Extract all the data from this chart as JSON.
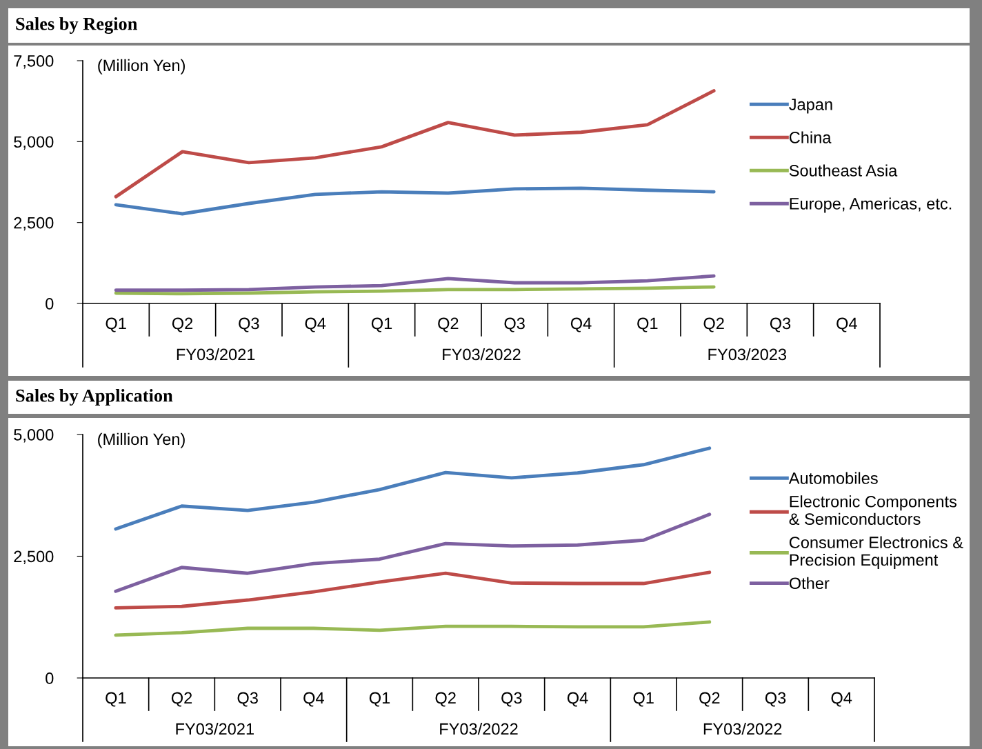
{
  "chart_data": [
    {
      "type": "line",
      "title": "Sales by Region",
      "ylabel": "(Million Yen)",
      "categories": [
        "Q1",
        "Q2",
        "Q3",
        "Q4",
        "Q1",
        "Q2",
        "Q3",
        "Q4",
        "Q1",
        "Q2",
        "Q3",
        "Q4"
      ],
      "annotations": [
        "FY03/2021",
        "FY03/2022",
        "FY03/2023"
      ],
      "series": [
        {
          "name": "Japan",
          "color": "#4a7ebb",
          "values": [
            3050,
            2770,
            3090,
            3370,
            3450,
            3410,
            3540,
            3560,
            3500,
            3450,
            null,
            null
          ]
        },
        {
          "name": "China",
          "color": "#be4b48",
          "values": [
            3300,
            4690,
            4350,
            4500,
            4840,
            5590,
            5200,
            5290,
            5520,
            6570,
            null,
            null
          ]
        },
        {
          "name": "Southeast Asia",
          "color": "#98b954",
          "values": [
            320,
            300,
            320,
            360,
            380,
            430,
            430,
            450,
            470,
            510,
            null,
            null
          ]
        },
        {
          "name": "Europe, Americas, etc.",
          "color": "#7d60a0",
          "values": [
            410,
            410,
            430,
            510,
            550,
            770,
            640,
            640,
            700,
            850,
            null,
            null
          ]
        }
      ],
      "ylim": [
        0,
        7500
      ],
      "yticks": [
        {
          "value": 0,
          "label": "0"
        },
        {
          "value": 2500,
          "label": "2,500"
        },
        {
          "value": 5000,
          "label": "5,000"
        },
        {
          "value": 7500,
          "label": "7,500"
        }
      ],
      "legend": "right",
      "grid": false,
      "marker": "none",
      "line_style": "solid"
    },
    {
      "type": "line",
      "title": "Sales by Application",
      "ylabel": "(Million Yen)",
      "categories": [
        "Q1",
        "Q2",
        "Q3",
        "Q4",
        "Q1",
        "Q2",
        "Q3",
        "Q4",
        "Q1",
        "Q2",
        "Q3",
        "Q4"
      ],
      "annotations": [
        "FY03/2021",
        "FY03/2022",
        "FY03/2022"
      ],
      "series": [
        {
          "name": "Automobiles",
          "color": "#4a7ebb",
          "values": [
            3060,
            3530,
            3440,
            3610,
            3870,
            4220,
            4110,
            4210,
            4380,
            4720,
            null,
            null
          ]
        },
        {
          "name": "Electronic Components\n& Semiconductors",
          "color": "#be4b48",
          "values": [
            1440,
            1470,
            1600,
            1770,
            1970,
            2150,
            1950,
            1940,
            1940,
            2170,
            null,
            null
          ]
        },
        {
          "name": "Consumer Electronics &\nPrecision Equipment",
          "color": "#98b954",
          "values": [
            880,
            930,
            1020,
            1020,
            980,
            1060,
            1060,
            1050,
            1050,
            1150,
            null,
            null
          ]
        },
        {
          "name": "Other",
          "color": "#7d60a0",
          "values": [
            1780,
            2270,
            2150,
            2350,
            2440,
            2760,
            2710,
            2730,
            2830,
            3360,
            null,
            null
          ]
        }
      ],
      "ylim": [
        0,
        5000
      ],
      "yticks": [
        {
          "value": 0,
          "label": "0"
        },
        {
          "value": 2500,
          "label": "2,500"
        },
        {
          "value": 5000,
          "label": "5,000"
        }
      ],
      "legend": "right",
      "grid": false,
      "marker": "none",
      "line_style": "solid"
    }
  ]
}
